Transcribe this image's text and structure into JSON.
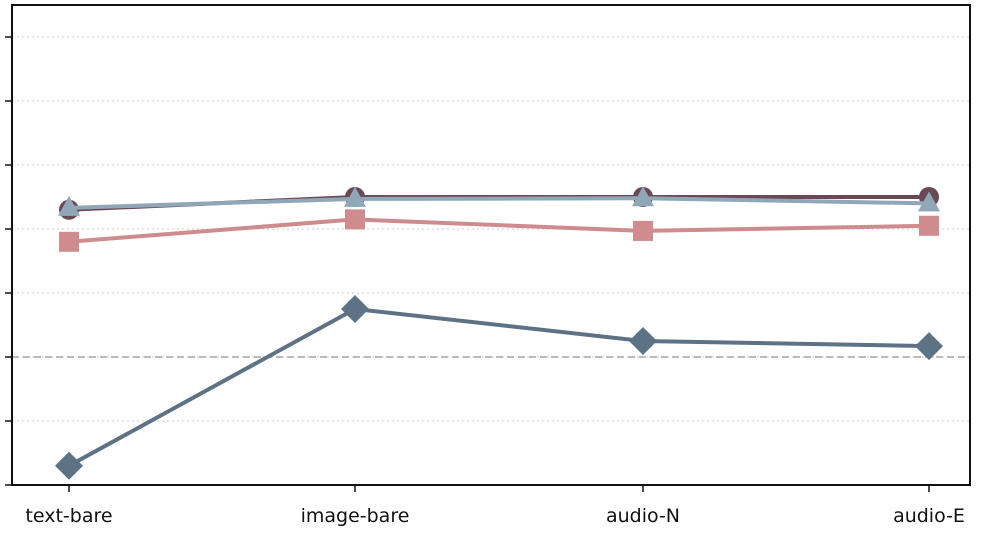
{
  "chart_data": {
    "type": "line",
    "title": "",
    "xlabel": "",
    "ylabel": "",
    "categories": [
      "text-bare",
      "image-bare",
      "audio-N",
      "audio-E"
    ],
    "y_ticks": [
      0,
      1,
      2,
      3,
      4,
      5,
      6,
      7
    ],
    "ylim": [
      0,
      7.5
    ],
    "grid": "horizontal dotted",
    "reference_line": {
      "value": 2,
      "style": "dashed",
      "color": "#bbbbbb"
    },
    "series": [
      {
        "marker": "circle",
        "color": "#6b4856",
        "values": [
          4.3,
          4.5,
          4.5,
          4.5
        ]
      },
      {
        "marker": "square",
        "color": "#cf8b8d",
        "values": [
          3.8,
          4.15,
          3.97,
          4.05
        ]
      },
      {
        "marker": "triangle",
        "color": "#8fa7b6",
        "values": [
          4.33,
          4.47,
          4.48,
          4.4
        ]
      },
      {
        "marker": "diamond",
        "color": "#5d7285",
        "values": [
          0.3,
          2.75,
          2.25,
          2.17
        ]
      }
    ]
  }
}
